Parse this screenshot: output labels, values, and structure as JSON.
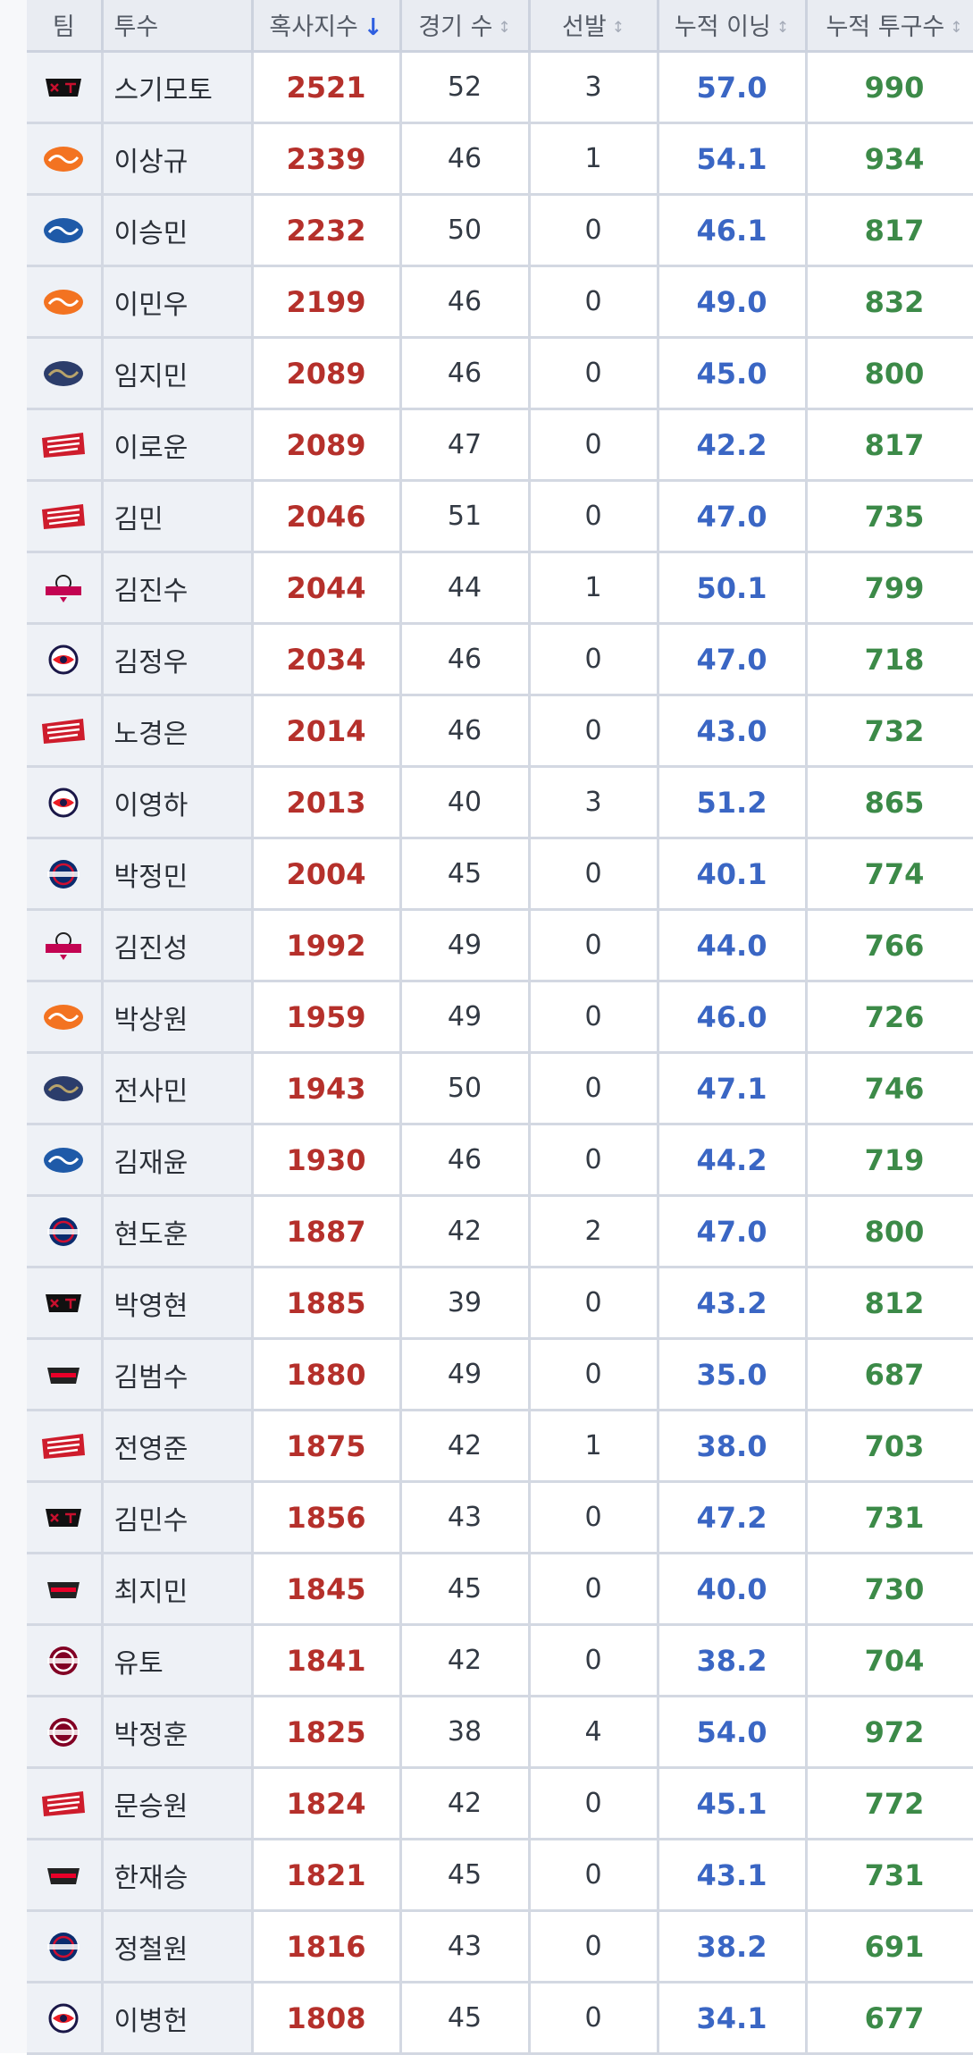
{
  "columns": [
    {
      "label": "팀",
      "sort": "none"
    },
    {
      "label": "투수",
      "sort": "none"
    },
    {
      "label": "혹사지수",
      "sort": "desc"
    },
    {
      "label": "경기 수",
      "sort": "sortable"
    },
    {
      "label": "선발",
      "sort": "sortable"
    },
    {
      "label": "누적 이닝",
      "sort": "sortable"
    },
    {
      "label": "누적 투구수",
      "sort": "sortable"
    }
  ],
  "arrow_glyphs": {
    "desc": "↓",
    "sortable": "↕"
  },
  "team_colors": {
    "kt": {
      "main": "#111111",
      "accent": "#c8102e"
    },
    "eagles": {
      "main": "#f37321",
      "accent": "#ffffff"
    },
    "lions": {
      "main": "#1f5aa8",
      "accent": "#ffffff"
    },
    "dinos": {
      "main": "#2c3d6b",
      "accent": "#b8a36b"
    },
    "landers": {
      "main": "#ce1c2c",
      "accent": "#ffffff"
    },
    "twins": {
      "main": "#c30452",
      "accent": "#222222"
    },
    "bears": {
      "main": "#1a1748",
      "accent": "#ed1c24"
    },
    "giants": {
      "main": "#0a2c6e",
      "accent": "#d00f31"
    },
    "tigers": {
      "main": "#222222",
      "accent": "#ea0029"
    },
    "heroes": {
      "main": "#820024",
      "accent": "#ffffff"
    }
  },
  "rows": [
    {
      "team": "kt",
      "team_icon": "kt-wiz-logo-icon",
      "name": "스기모토",
      "hol": "2521",
      "games": "52",
      "starts": "3",
      "ip": "57.0",
      "pitches": "990"
    },
    {
      "team": "eagles",
      "team_icon": "eagles-logo-icon",
      "name": "이상규",
      "hol": "2339",
      "games": "46",
      "starts": "1",
      "ip": "54.1",
      "pitches": "934"
    },
    {
      "team": "lions",
      "team_icon": "lions-logo-icon",
      "name": "이승민",
      "hol": "2232",
      "games": "50",
      "starts": "0",
      "ip": "46.1",
      "pitches": "817"
    },
    {
      "team": "eagles",
      "team_icon": "eagles-logo-icon",
      "name": "이민우",
      "hol": "2199",
      "games": "46",
      "starts": "0",
      "ip": "49.0",
      "pitches": "832"
    },
    {
      "team": "dinos",
      "team_icon": "dinos-logo-icon",
      "name": "임지민",
      "hol": "2089",
      "games": "46",
      "starts": "0",
      "ip": "45.0",
      "pitches": "800"
    },
    {
      "team": "landers",
      "team_icon": "landers-logo-icon",
      "name": "이로운",
      "hol": "2089",
      "games": "47",
      "starts": "0",
      "ip": "42.2",
      "pitches": "817"
    },
    {
      "team": "landers",
      "team_icon": "landers-logo-icon",
      "name": "김민",
      "hol": "2046",
      "games": "51",
      "starts": "0",
      "ip": "47.0",
      "pitches": "735"
    },
    {
      "team": "twins",
      "team_icon": "twins-logo-icon",
      "name": "김진수",
      "hol": "2044",
      "games": "44",
      "starts": "1",
      "ip": "50.1",
      "pitches": "799"
    },
    {
      "team": "bears",
      "team_icon": "bears-logo-icon",
      "name": "김정우",
      "hol": "2034",
      "games": "46",
      "starts": "0",
      "ip": "47.0",
      "pitches": "718"
    },
    {
      "team": "landers",
      "team_icon": "landers-logo-icon",
      "name": "노경은",
      "hol": "2014",
      "games": "46",
      "starts": "0",
      "ip": "43.0",
      "pitches": "732"
    },
    {
      "team": "bears",
      "team_icon": "bears-logo-icon",
      "name": "이영하",
      "hol": "2013",
      "games": "40",
      "starts": "3",
      "ip": "51.2",
      "pitches": "865"
    },
    {
      "team": "giants",
      "team_icon": "giants-logo-icon",
      "name": "박정민",
      "hol": "2004",
      "games": "45",
      "starts": "0",
      "ip": "40.1",
      "pitches": "774"
    },
    {
      "team": "twins",
      "team_icon": "twins-logo-icon",
      "name": "김진성",
      "hol": "1992",
      "games": "49",
      "starts": "0",
      "ip": "44.0",
      "pitches": "766"
    },
    {
      "team": "eagles",
      "team_icon": "eagles-logo-icon",
      "name": "박상원",
      "hol": "1959",
      "games": "49",
      "starts": "0",
      "ip": "46.0",
      "pitches": "726"
    },
    {
      "team": "dinos",
      "team_icon": "dinos-logo-icon",
      "name": "전사민",
      "hol": "1943",
      "games": "50",
      "starts": "0",
      "ip": "47.1",
      "pitches": "746"
    },
    {
      "team": "lions",
      "team_icon": "lions-logo-icon",
      "name": "김재윤",
      "hol": "1930",
      "games": "46",
      "starts": "0",
      "ip": "44.2",
      "pitches": "719"
    },
    {
      "team": "giants",
      "team_icon": "giants-logo-icon",
      "name": "현도훈",
      "hol": "1887",
      "games": "42",
      "starts": "2",
      "ip": "47.0",
      "pitches": "800"
    },
    {
      "team": "kt",
      "team_icon": "kt-wiz-logo-icon",
      "name": "박영현",
      "hol": "1885",
      "games": "39",
      "starts": "0",
      "ip": "43.2",
      "pitches": "812"
    },
    {
      "team": "tigers",
      "team_icon": "tigers-logo-icon",
      "name": "김범수",
      "hol": "1880",
      "games": "49",
      "starts": "0",
      "ip": "35.0",
      "pitches": "687"
    },
    {
      "team": "landers",
      "team_icon": "landers-logo-icon",
      "name": "전영준",
      "hol": "1875",
      "games": "42",
      "starts": "1",
      "ip": "38.0",
      "pitches": "703"
    },
    {
      "team": "kt",
      "team_icon": "kt-wiz-logo-icon",
      "name": "김민수",
      "hol": "1856",
      "games": "43",
      "starts": "0",
      "ip": "47.2",
      "pitches": "731"
    },
    {
      "team": "tigers",
      "team_icon": "tigers-logo-icon",
      "name": "최지민",
      "hol": "1845",
      "games": "45",
      "starts": "0",
      "ip": "40.0",
      "pitches": "730"
    },
    {
      "team": "heroes",
      "team_icon": "heroes-logo-icon",
      "name": "유토",
      "hol": "1841",
      "games": "42",
      "starts": "0",
      "ip": "38.2",
      "pitches": "704"
    },
    {
      "team": "heroes",
      "team_icon": "heroes-logo-icon",
      "name": "박정훈",
      "hol": "1825",
      "games": "38",
      "starts": "4",
      "ip": "54.0",
      "pitches": "972"
    },
    {
      "team": "landers",
      "team_icon": "landers-logo-icon",
      "name": "문승원",
      "hol": "1824",
      "games": "42",
      "starts": "0",
      "ip": "45.1",
      "pitches": "772"
    },
    {
      "team": "tigers",
      "team_icon": "tigers-logo-icon",
      "name": "한재승",
      "hol": "1821",
      "games": "45",
      "starts": "0",
      "ip": "43.1",
      "pitches": "731"
    },
    {
      "team": "giants",
      "team_icon": "giants-logo-icon",
      "name": "정철원",
      "hol": "1816",
      "games": "43",
      "starts": "0",
      "ip": "38.2",
      "pitches": "691"
    },
    {
      "team": "bears",
      "team_icon": "bears-logo-icon",
      "name": "이병헌",
      "hol": "1808",
      "games": "45",
      "starts": "0",
      "ip": "34.1",
      "pitches": "677"
    }
  ]
}
